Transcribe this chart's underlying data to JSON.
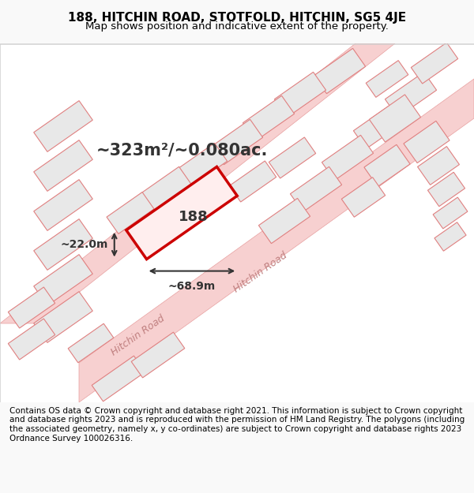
{
  "title_line1": "188, HITCHIN ROAD, STOTFOLD, HITCHIN, SG5 4JE",
  "title_line2": "Map shows position and indicative extent of the property.",
  "footer_text": "Contains OS data © Crown copyright and database right 2021. This information is subject to Crown copyright and database rights 2023 and is reproduced with the permission of HM Land Registry. The polygons (including the associated geometry, namely x, y co-ordinates) are subject to Crown copyright and database rights 2023 Ordnance Survey 100026316.",
  "area_text": "~323m²/~0.080ac.",
  "width_text": "~68.9m",
  "height_text": "~22.0m",
  "property_number": "188",
  "bg_color": "#f9f9f9",
  "map_bg_color": "#ffffff",
  "road_color": "#f5c0c0",
  "highlight_color": "#cc0000",
  "plot_fill": "#e8e8e8",
  "line_color": "#e8a0a0",
  "road_label": "Hitchin Road",
  "title_fontsize": 11,
  "footer_fontsize": 7.5
}
